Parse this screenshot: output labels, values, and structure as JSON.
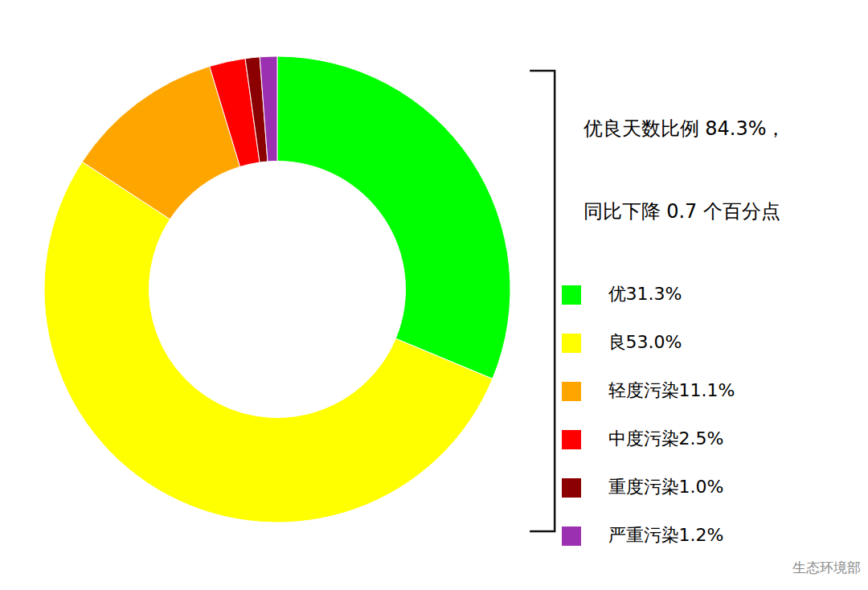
{
  "chart_data": {
    "type": "pie",
    "categories": [
      "优31.3%",
      "良53.0%",
      "轻度污染11.1%",
      "中度污染2.5%",
      "重度污染1.0%",
      "严重污染1.2%"
    ],
    "values": [
      31.3,
      53.0,
      11.1,
      2.5,
      1.0,
      1.2
    ],
    "colors": [
      "#00FF00",
      "#FFFF00",
      "#FFA500",
      "#FF0000",
      "#8B0000",
      "#9B30B0"
    ],
    "annotations": [
      "优良天数比例 84.3%，",
      "同比下降 0.7 个百分点"
    ],
    "source": "生态环境部",
    "legend": "right"
  }
}
